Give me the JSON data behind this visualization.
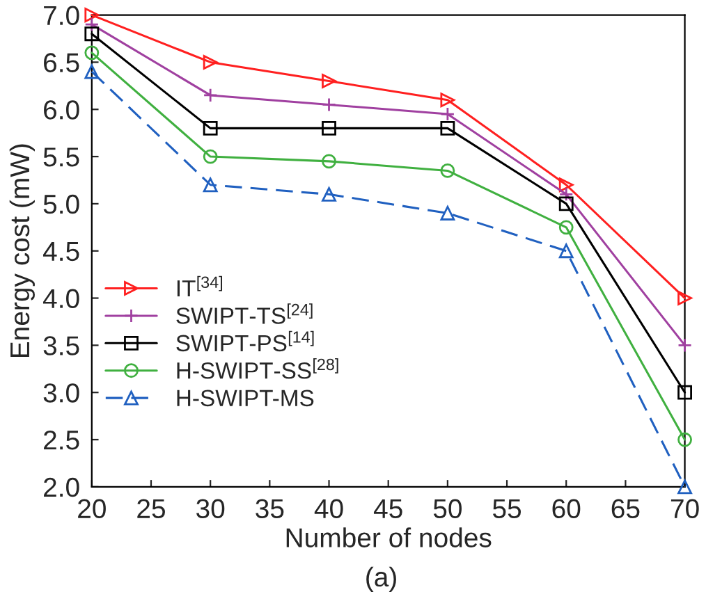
{
  "chart_data": {
    "type": "line",
    "xlabel": "Number of nodes",
    "ylabel": "Energy cost (mW)",
    "x": [
      20,
      30,
      40,
      50,
      60,
      70
    ],
    "series": [
      {
        "name": "IT$^{[34]}$",
        "color": "#ff2020",
        "marker": "triangle-right",
        "line_style": "solid",
        "values": [
          7.0,
          6.5,
          6.3,
          6.1,
          5.2,
          4.0
        ]
      },
      {
        "name": "SWIPT-TS$^{[24]}$",
        "color": "#a040a0",
        "marker": "plus",
        "line_style": "solid",
        "values": [
          6.9,
          6.15,
          6.05,
          5.95,
          5.1,
          3.5
        ]
      },
      {
        "name": "SWIPT-PS$^{[14]}$",
        "color": "#000000",
        "marker": "square",
        "line_style": "solid",
        "values": [
          6.8,
          5.8,
          5.8,
          5.8,
          5.0,
          3.0
        ]
      },
      {
        "name": "H-SWIPT-SS$^{[28]}$",
        "color": "#40b040",
        "marker": "circle",
        "line_style": "solid",
        "values": [
          6.6,
          5.5,
          5.45,
          5.35,
          4.75,
          2.5
        ]
      },
      {
        "name": "H-SWIPT-MS",
        "color": "#2060c0",
        "marker": "triangle",
        "line_style": "dashed",
        "values": [
          6.4,
          5.2,
          5.1,
          4.9,
          4.5,
          2.0
        ]
      }
    ],
    "xlim": [
      20,
      70
    ],
    "xticks": [
      20,
      25,
      30,
      35,
      40,
      45,
      50,
      55,
      60,
      65,
      70
    ],
    "ylim": [
      2.0,
      7.0
    ],
    "yticks": [
      {
        "value": 2,
        "label": "2.0"
      },
      2.5,
      {
        "value": 3,
        "label": "3.0"
      },
      3.5,
      {
        "value": 4,
        "label": "4.0"
      },
      4.5,
      {
        "value": 5,
        "label": "5.0"
      },
      5.5,
      {
        "value": 6,
        "label": "6.0"
      },
      6.5,
      {
        "value": 7,
        "label": "7.0"
      }
    ],
    "grid": false,
    "legend": "left",
    "annotations": [
      "(a)"
    ]
  }
}
